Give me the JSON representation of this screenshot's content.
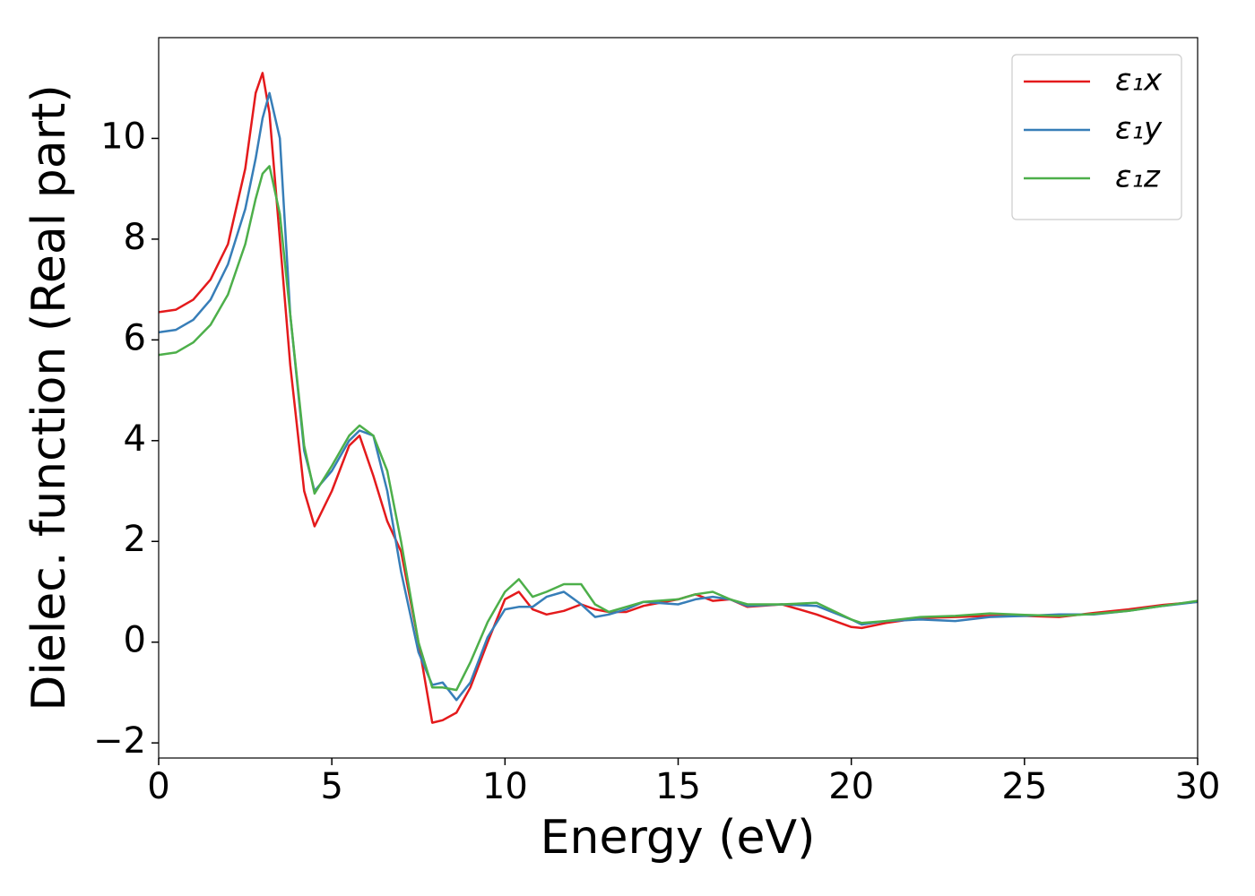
{
  "chart_data": {
    "type": "line",
    "xlabel": "Energy (eV)",
    "ylabel": "Dielec. function (Real part)",
    "x": [
      0,
      0.5,
      1,
      1.5,
      2,
      2.5,
      2.8,
      3,
      3.2,
      3.5,
      3.8,
      4.2,
      4.5,
      5,
      5.5,
      5.8,
      6.2,
      6.6,
      7,
      7.5,
      7.9,
      8.2,
      8.6,
      9,
      9.5,
      10,
      10.4,
      10.8,
      11.2,
      11.7,
      12.2,
      12.6,
      13,
      13.5,
      14,
      15,
      15.5,
      16,
      16.5,
      17,
      18,
      19,
      20,
      20.3,
      21,
      22,
      23,
      24,
      25,
      26,
      27,
      28,
      29,
      30
    ],
    "series": [
      {
        "name": "ε₁x",
        "color": "#e41a1c",
        "values": [
          6.55,
          6.6,
          6.8,
          7.2,
          7.9,
          9.4,
          10.9,
          11.3,
          10.5,
          8.0,
          5.5,
          3.0,
          2.3,
          3.0,
          3.9,
          4.1,
          3.3,
          2.4,
          1.8,
          0.0,
          -1.6,
          -1.55,
          -1.4,
          -0.9,
          0.0,
          0.85,
          1.0,
          0.65,
          0.55,
          0.62,
          0.75,
          0.65,
          0.6,
          0.6,
          0.72,
          0.85,
          0.95,
          0.82,
          0.85,
          0.7,
          0.75,
          0.55,
          0.3,
          0.28,
          0.38,
          0.48,
          0.5,
          0.52,
          0.52,
          0.5,
          0.58,
          0.65,
          0.74,
          0.8
        ]
      },
      {
        "name": "ε₁y",
        "color": "#377eb8",
        "values": [
          6.15,
          6.2,
          6.4,
          6.8,
          7.5,
          8.6,
          9.6,
          10.4,
          10.9,
          10.0,
          6.5,
          3.8,
          3.0,
          3.4,
          4.0,
          4.2,
          4.1,
          3.0,
          1.4,
          -0.2,
          -0.85,
          -0.8,
          -1.15,
          -0.8,
          0.1,
          0.65,
          0.7,
          0.7,
          0.9,
          1.0,
          0.75,
          0.5,
          0.55,
          0.65,
          0.8,
          0.75,
          0.85,
          0.9,
          0.85,
          0.72,
          0.75,
          0.72,
          0.45,
          0.35,
          0.42,
          0.45,
          0.42,
          0.5,
          0.52,
          0.55,
          0.55,
          0.62,
          0.72,
          0.8
        ]
      },
      {
        "name": "ε₁z",
        "color": "#4daf4a",
        "values": [
          5.7,
          5.75,
          5.95,
          6.3,
          6.9,
          7.9,
          8.8,
          9.3,
          9.45,
          8.5,
          6.5,
          3.9,
          2.95,
          3.5,
          4.1,
          4.3,
          4.1,
          3.4,
          2.0,
          0.0,
          -0.9,
          -0.9,
          -0.95,
          -0.4,
          0.4,
          1.0,
          1.25,
          0.9,
          1.0,
          1.15,
          1.15,
          0.75,
          0.6,
          0.7,
          0.8,
          0.85,
          0.95,
          1.0,
          0.85,
          0.75,
          0.75,
          0.78,
          0.45,
          0.38,
          0.42,
          0.5,
          0.52,
          0.57,
          0.54,
          0.52,
          0.56,
          0.62,
          0.72,
          0.82
        ]
      }
    ],
    "xlim": [
      0,
      30
    ],
    "xticks": [
      0,
      5,
      10,
      15,
      20,
      25,
      30
    ],
    "ylim": [
      -2.3,
      12
    ],
    "yticks": [
      {
        "value": -2,
        "label": "−2"
      },
      0,
      2,
      4,
      6,
      8,
      10
    ],
    "grid": false,
    "legend": "upper right"
  }
}
